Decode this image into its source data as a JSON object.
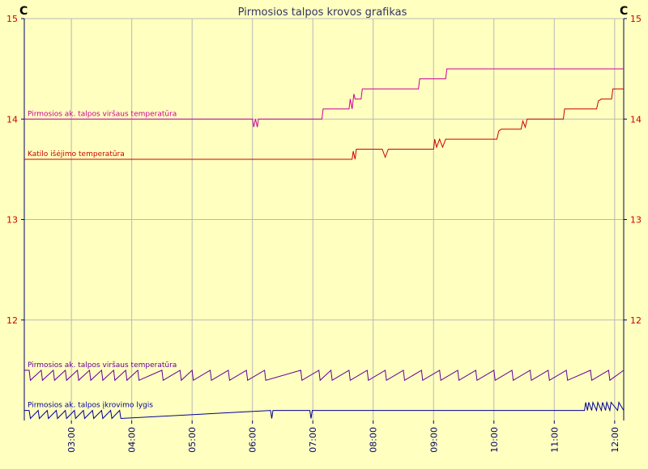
{
  "chart_data": {
    "type": "line",
    "title": "Pirmosios talpos krovos grafikas",
    "y_unit_left": "C",
    "y_unit_right": "C",
    "ylim": [
      11,
      15
    ],
    "yticks": [
      "12",
      "13",
      "14",
      "15"
    ],
    "x_ticks": [
      "03:00",
      "04:00",
      "05:00",
      "06:00",
      "07:00",
      "08:00",
      "09:00",
      "10:00",
      "11:00",
      "12:00"
    ],
    "xlim_hours": [
      2.22,
      12.15
    ],
    "grid": true,
    "series": [
      {
        "name": "Pirmosios ak. talpos viršaus temperatūra",
        "color": "#CC0099",
        "x": [
          2.22,
          6.0,
          6.02,
          6.05,
          6.08,
          6.1,
          7.15,
          7.17,
          7.6,
          7.62,
          7.65,
          7.68,
          7.7,
          7.8,
          7.82,
          8.75,
          8.77,
          9.2,
          9.22,
          12.15
        ],
        "values": [
          14.0,
          14.0,
          13.92,
          14.0,
          13.92,
          14.0,
          14.0,
          14.1,
          14.1,
          14.2,
          14.1,
          14.25,
          14.2,
          14.2,
          14.3,
          14.3,
          14.4,
          14.4,
          14.5,
          14.5
        ]
      },
      {
        "name": "Katilo išėjimo temperatūra",
        "color": "#CC0000",
        "x": [
          2.22,
          7.65,
          7.67,
          7.7,
          7.72,
          7.75,
          8.15,
          8.2,
          8.25,
          9.0,
          9.02,
          9.05,
          9.1,
          9.15,
          9.2,
          10.05,
          10.08,
          10.12,
          10.15,
          10.45,
          10.48,
          10.52,
          10.55,
          11.15,
          11.17,
          11.7,
          11.73,
          11.78,
          11.82,
          11.95,
          11.97,
          12.15
        ],
        "values": [
          13.6,
          13.6,
          13.68,
          13.6,
          13.7,
          13.7,
          13.7,
          13.62,
          13.7,
          13.7,
          13.8,
          13.72,
          13.8,
          13.72,
          13.8,
          13.8,
          13.88,
          13.9,
          13.9,
          13.9,
          13.98,
          13.92,
          14.0,
          14.0,
          14.1,
          14.1,
          14.18,
          14.2,
          14.2,
          14.2,
          14.3,
          14.3
        ]
      },
      {
        "name": "Pirmosios ak. talpos viršaus temperatūra",
        "color": "#660099",
        "x": [
          2.22,
          2.3,
          2.32,
          2.5,
          2.52,
          2.7,
          2.72,
          2.9,
          2.92,
          3.1,
          3.12,
          3.3,
          3.32,
          3.5,
          3.52,
          3.7,
          3.72,
          3.9,
          3.92,
          4.1,
          4.12,
          4.5,
          4.52,
          4.8,
          4.82,
          5.0,
          5.02,
          5.3,
          5.32,
          5.6,
          5.62,
          5.9,
          5.92,
          6.2,
          6.22,
          6.8,
          6.82,
          7.1,
          7.12,
          7.3,
          7.32,
          7.6,
          7.62,
          7.9,
          7.92,
          8.2,
          8.22,
          8.5,
          8.52,
          8.8,
          8.82,
          9.1,
          9.12,
          9.4,
          9.42,
          9.7,
          9.72,
          10.0,
          10.02,
          10.3,
          10.32,
          10.6,
          10.62,
          10.9,
          10.92,
          11.2,
          11.22,
          11.6,
          11.62,
          11.9,
          11.92,
          12.15
        ],
        "values": [
          11.5,
          11.5,
          11.4,
          11.5,
          11.4,
          11.5,
          11.4,
          11.5,
          11.4,
          11.5,
          11.4,
          11.5,
          11.4,
          11.5,
          11.4,
          11.5,
          11.4,
          11.5,
          11.4,
          11.5,
          11.4,
          11.5,
          11.4,
          11.5,
          11.4,
          11.5,
          11.4,
          11.5,
          11.4,
          11.5,
          11.4,
          11.5,
          11.4,
          11.5,
          11.4,
          11.5,
          11.4,
          11.5,
          11.4,
          11.5,
          11.4,
          11.5,
          11.4,
          11.5,
          11.4,
          11.5,
          11.4,
          11.5,
          11.4,
          11.5,
          11.4,
          11.5,
          11.4,
          11.5,
          11.4,
          11.5,
          11.4,
          11.5,
          11.4,
          11.5,
          11.4,
          11.5,
          11.4,
          11.5,
          11.4,
          11.5,
          11.4,
          11.5,
          11.4,
          11.5,
          11.4,
          11.5
        ]
      },
      {
        "name": "Pirmosios ak. talpos įkrovimo lygis",
        "color": "#000099",
        "x": [
          2.22,
          2.3,
          2.32,
          2.45,
          2.47,
          2.6,
          2.62,
          2.75,
          2.77,
          2.9,
          2.92,
          3.05,
          3.07,
          3.2,
          3.22,
          3.35,
          3.37,
          3.5,
          3.52,
          3.65,
          3.67,
          3.8,
          3.82,
          6.3,
          6.32,
          6.34,
          6.95,
          6.97,
          6.99,
          11.5,
          11.52,
          11.55,
          11.57,
          11.62,
          11.64,
          11.7,
          11.72,
          11.78,
          11.8,
          11.85,
          11.87,
          11.92,
          11.94,
          12.05,
          12.07,
          12.15
        ],
        "values": [
          11.1,
          11.1,
          11.02,
          11.1,
          11.02,
          11.1,
          11.02,
          11.1,
          11.02,
          11.1,
          11.02,
          11.1,
          11.02,
          11.1,
          11.02,
          11.1,
          11.02,
          11.1,
          11.02,
          11.1,
          11.02,
          11.1,
          11.02,
          11.1,
          11.02,
          11.1,
          11.1,
          11.02,
          11.1,
          11.1,
          11.18,
          11.1,
          11.18,
          11.1,
          11.18,
          11.1,
          11.18,
          11.1,
          11.18,
          11.1,
          11.18,
          11.1,
          11.18,
          11.1,
          11.18,
          11.1
        ]
      }
    ]
  }
}
